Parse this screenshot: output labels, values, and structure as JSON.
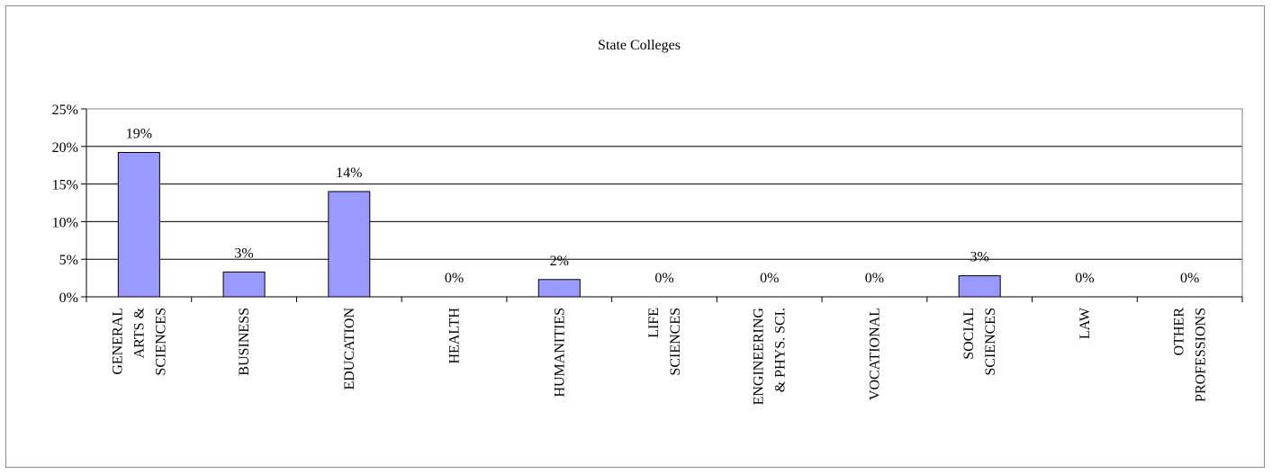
{
  "chart_data": {
    "type": "bar",
    "title": "State Colleges",
    "xlabel": "",
    "ylabel": "",
    "ylim": [
      0,
      25
    ],
    "ytick_labels": [
      "0%",
      "5%",
      "10%",
      "15%",
      "20%",
      "25%"
    ],
    "grid": true,
    "legend": "none",
    "categories": [
      "GENERAL ARTS & SCIENCES",
      "BUSINESS",
      "EDUCATION",
      "HEALTH",
      "HUMANITIES",
      "LIFE SCIENCES",
      "ENGINEERING & PHYS. SCI.",
      "VOCATIONAL",
      "SOCIAL SCIENCES",
      "LAW",
      "OTHER PROFESSIONS"
    ],
    "category_lines": [
      [
        "GENERAL",
        "ARTS &",
        "SCIENCES"
      ],
      [
        "BUSINESS"
      ],
      [
        "EDUCATION"
      ],
      [
        "HEALTH"
      ],
      [
        "HUMANITIES"
      ],
      [
        "LIFE",
        "SCIENCES"
      ],
      [
        "ENGINEERING",
        "& PHYS. SCI."
      ],
      [
        "VOCATIONAL"
      ],
      [
        "SOCIAL",
        "SCIENCES"
      ],
      [
        "LAW"
      ],
      [
        "OTHER",
        "PROFESSIONS"
      ]
    ],
    "values": [
      19.2,
      3.3,
      14.0,
      0,
      2.3,
      0,
      0,
      0,
      2.8,
      0,
      0
    ],
    "data_labels": [
      "19%",
      "3%",
      "14%",
      "0%",
      "2%",
      "0%",
      "0%",
      "0%",
      "3%",
      "0%",
      "0%"
    ],
    "colors": {
      "bar_fill": "#9999ff",
      "bar_stroke": "#000000",
      "grid": "#000000",
      "plot_border": "#808080"
    }
  }
}
